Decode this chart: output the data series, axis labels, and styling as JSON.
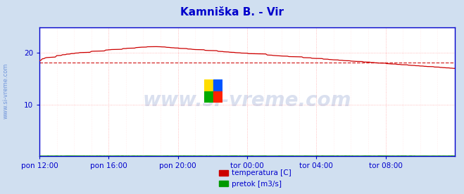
{
  "title": "Kamniška B. - Vir",
  "title_color": "#0000cc",
  "title_fontsize": 11,
  "bg_color": "#d0dff0",
  "plot_bg_color": "#ffffff",
  "xlim": [
    0,
    288
  ],
  "ylim": [
    0,
    25
  ],
  "yticks": [
    10,
    20
  ],
  "xtick_labels": [
    "pon 12:00",
    "pon 16:00",
    "pon 20:00",
    "tor 00:00",
    "tor 04:00",
    "tor 08:00"
  ],
  "xtick_positions": [
    0,
    48,
    96,
    144,
    192,
    240
  ],
  "grid_color_major": "#ffaaaa",
  "grid_color_minor": "#ffdddd",
  "avg_line_color": "#cc0000",
  "avg_line_value": 18.1,
  "temp_color": "#cc0000",
  "flow_color_line": "#009900",
  "axis_color": "#0000cc",
  "tick_color": "#0000cc",
  "watermark_text": "www.si-vreme.com",
  "watermark_color": "#3355aa",
  "watermark_alpha": 0.18,
  "legend_temp_label": "temperatura [C]",
  "legend_flow_label": "pretok [m3/s]",
  "legend_temp_color": "#cc0000",
  "legend_flow_color": "#009900",
  "side_label": "www.si-vreme.com",
  "side_label_color": "#3366cc",
  "side_label_alpha": 0.6
}
